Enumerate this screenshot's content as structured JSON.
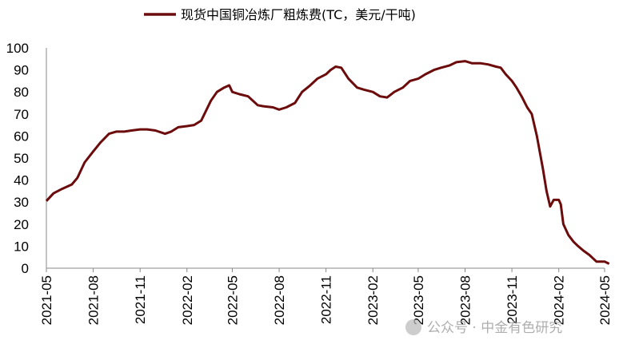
{
  "chart_data": {
    "type": "line",
    "title": "",
    "xlabel": "",
    "ylabel": "",
    "ylim": [
      0,
      100
    ],
    "yticks": [
      0,
      10,
      20,
      30,
      40,
      50,
      60,
      70,
      80,
      90,
      100
    ],
    "xlim": [
      "2021-05",
      "2024-05"
    ],
    "xticks": [
      "2021-05",
      "2021-08",
      "2021-11",
      "2022-02",
      "2022-05",
      "2022-08",
      "2022-11",
      "2023-02",
      "2023-05",
      "2023-08",
      "2023-11",
      "2024-02",
      "2024-05"
    ],
    "legend": {
      "position": "top-center"
    },
    "grid": false,
    "series": [
      {
        "name": "现货中国铜冶炼厂粗炼费(TC，美元/干吨)",
        "color": "#6b0b0b",
        "x": [
          "2021-05-01",
          "2021-05-15",
          "2021-06-01",
          "2021-06-20",
          "2021-07-01",
          "2021-07-15",
          "2021-08-01",
          "2021-08-15",
          "2021-09-01",
          "2021-09-15",
          "2021-10-01",
          "2021-10-15",
          "2021-11-01",
          "2021-11-15",
          "2021-12-01",
          "2021-12-20",
          "2022-01-01",
          "2022-01-15",
          "2022-02-01",
          "2022-02-15",
          "2022-03-01",
          "2022-03-20",
          "2022-04-01",
          "2022-04-15",
          "2022-04-25",
          "2022-05-01",
          "2022-05-15",
          "2022-06-01",
          "2022-06-20",
          "2022-07-01",
          "2022-07-20",
          "2022-08-01",
          "2022-08-15",
          "2022-09-01",
          "2022-09-15",
          "2022-10-01",
          "2022-10-15",
          "2022-11-01",
          "2022-11-10",
          "2022-11-20",
          "2022-12-01",
          "2022-12-15",
          "2023-01-01",
          "2023-01-15",
          "2023-02-01",
          "2023-02-15",
          "2023-03-01",
          "2023-03-15",
          "2023-04-01",
          "2023-04-15",
          "2023-05-01",
          "2023-05-15",
          "2023-06-01",
          "2023-06-15",
          "2023-07-01",
          "2023-07-15",
          "2023-08-01",
          "2023-08-15",
          "2023-09-01",
          "2023-09-15",
          "2023-10-01",
          "2023-10-10",
          "2023-10-20",
          "2023-11-01",
          "2023-11-10",
          "2023-11-20",
          "2023-12-01",
          "2023-12-10",
          "2023-12-20",
          "2024-01-01",
          "2024-01-08",
          "2024-01-15",
          "2024-01-22",
          "2024-02-01",
          "2024-02-05",
          "2024-02-10",
          "2024-02-20",
          "2024-03-01",
          "2024-03-10",
          "2024-03-20",
          "2024-04-01",
          "2024-04-15",
          "2024-05-01",
          "2024-05-10"
        ],
        "values": [
          30.5,
          34,
          36,
          38,
          41,
          48,
          53,
          57,
          61,
          62,
          62,
          62.5,
          63,
          63,
          62.5,
          61,
          62,
          64,
          64.5,
          65,
          67,
          76,
          80,
          82,
          83,
          80,
          79,
          78,
          74,
          73.5,
          73,
          72,
          73,
          75,
          80,
          83,
          86,
          88,
          90,
          91.5,
          91,
          86,
          82,
          81,
          80,
          78,
          77.5,
          80,
          82,
          85,
          86,
          88,
          90,
          91,
          92,
          93.5,
          94,
          93,
          93,
          92.5,
          91.5,
          91,
          88,
          85,
          82,
          78,
          73,
          70,
          60,
          45,
          35,
          28,
          31,
          31,
          29,
          20,
          15,
          12,
          10,
          8,
          6,
          3,
          3,
          2
        ]
      }
    ]
  },
  "watermark": "公众号 · 中金有色研究"
}
